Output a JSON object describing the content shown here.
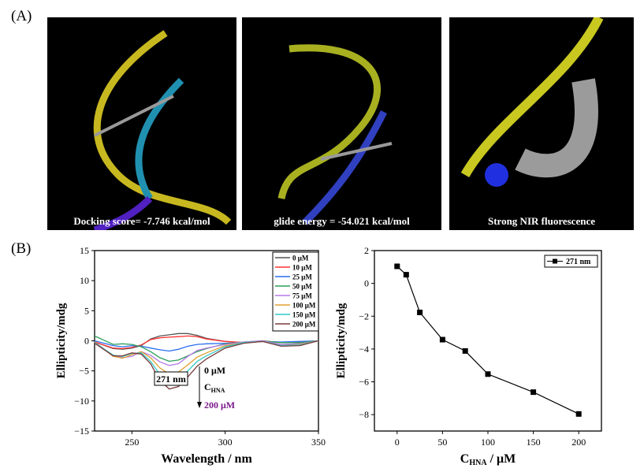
{
  "figure": {
    "label_a": "(A)",
    "label_b": "(B)",
    "panels": [
      {
        "caption": "Docking score= -7.746 kcal/mol"
      },
      {
        "caption": "glide energy = -54.021 kcal/mol"
      },
      {
        "caption": "Strong NIR fluorescence"
      }
    ]
  },
  "chart_data": [
    {
      "type": "line",
      "xlabel": "Wavelength / nm",
      "ylabel": "Ellipticity/mdg",
      "xlim": [
        230,
        350
      ],
      "ylim": [
        -15,
        15
      ],
      "xticks": [
        250,
        300,
        350
      ],
      "yticks": [
        15,
        10,
        5,
        0,
        -5,
        -10,
        -15
      ],
      "grid": false,
      "legend_position": "top-right",
      "x": [
        230,
        240,
        245,
        250,
        255,
        260,
        265,
        270,
        275,
        280,
        285,
        290,
        300,
        310,
        320,
        330,
        340,
        350
      ],
      "series": [
        {
          "name": "0 μM",
          "color": "#555555",
          "values": [
            -0.2,
            -1.3,
            -1.4,
            -1.2,
            -0.8,
            0.3,
            0.8,
            1.0,
            1.2,
            1.2,
            0.9,
            0.4,
            -0.1,
            -0.3,
            0,
            -0.6,
            -0.5,
            0
          ]
        },
        {
          "name": "10 μM",
          "color": "#ff3333",
          "values": [
            -0.2,
            -1.2,
            -1.3,
            -1.1,
            -0.7,
            0.2,
            0.5,
            0.6,
            0.7,
            0.8,
            0.7,
            0.3,
            -0.1,
            -0.3,
            0,
            -0.3,
            -0.2,
            0
          ]
        },
        {
          "name": "25 μM",
          "color": "#2a6ef0",
          "values": [
            0,
            -0.8,
            -1.0,
            -0.8,
            -0.9,
            -1.2,
            -1.5,
            -1.7,
            -1.4,
            -0.9,
            -0.6,
            -0.5,
            -0.4,
            -0.3,
            -0.1,
            -0.2,
            -0.1,
            0
          ]
        },
        {
          "name": "50 μM",
          "color": "#2e9e5a",
          "values": [
            0.8,
            -0.6,
            -0.5,
            -0.6,
            -1.0,
            -1.8,
            -2.8,
            -3.4,
            -3.2,
            -2.5,
            -1.8,
            -1.3,
            -0.5,
            -0.2,
            0,
            -0.3,
            -0.3,
            0
          ]
        },
        {
          "name": "75 μM",
          "color": "#b57ae8",
          "values": [
            -0.2,
            -2.5,
            -2.8,
            -2.6,
            -1.8,
            -2.4,
            -3.5,
            -4.1,
            -3.8,
            -2.6,
            -1.6,
            -1.2,
            -0.6,
            -0.2,
            0,
            -0.6,
            -0.5,
            0
          ]
        },
        {
          "name": "100 μM",
          "color": "#e0a030",
          "values": [
            -0.2,
            -2.6,
            -2.9,
            -2.3,
            -1.8,
            -2.8,
            -4.5,
            -5.5,
            -5.2,
            -4.0,
            -2.7,
            -2.0,
            -0.8,
            -0.3,
            -0.1,
            -0.8,
            -0.6,
            0
          ]
        },
        {
          "name": "150 μM",
          "color": "#30c8c8",
          "values": [
            -0.3,
            -2.4,
            -2.6,
            -2.1,
            -2.0,
            -3.4,
            -5.6,
            -6.7,
            -6.3,
            -5.0,
            -3.4,
            -2.5,
            -1.0,
            -0.3,
            -0.1,
            -0.8,
            -0.7,
            0
          ]
        },
        {
          "name": "200 μM",
          "color": "#7a3a3a",
          "values": [
            -0.4,
            -2.5,
            -2.5,
            -2.0,
            -2.2,
            -3.8,
            -6.6,
            -8.0,
            -7.6,
            -6.0,
            -4.2,
            -3.0,
            -1.2,
            -0.4,
            -0.1,
            -0.9,
            -0.8,
            0
          ]
        }
      ],
      "annotations": {
        "peak_box": "271 nm",
        "arrow_start": "0 μM",
        "arrow_mid": "C",
        "arrow_mid_sub": "HNA",
        "arrow_end": "200 μM",
        "arrow_end_color": "#7a1a8a"
      }
    },
    {
      "type": "line",
      "xlabel": "C",
      "xlabel_sub": "HNA",
      "xlabel_suffix": " / μM",
      "ylabel": "Ellipticity/mdg",
      "xlim": [
        -25,
        225
      ],
      "ylim": [
        -9,
        2
      ],
      "xticks": [
        0,
        50,
        100,
        150,
        200
      ],
      "yticks": [
        2,
        0,
        -2,
        -4,
        -6,
        -8
      ],
      "grid": false,
      "legend_position": "top-right",
      "series": [
        {
          "name": "271 nm",
          "color": "#000000",
          "marker": "square",
          "x": [
            0,
            10,
            25,
            50,
            75,
            100,
            150,
            200
          ],
          "values": [
            1.04,
            0.53,
            -1.77,
            -3.43,
            -4.12,
            -5.53,
            -6.63,
            -7.96
          ]
        }
      ]
    }
  ]
}
